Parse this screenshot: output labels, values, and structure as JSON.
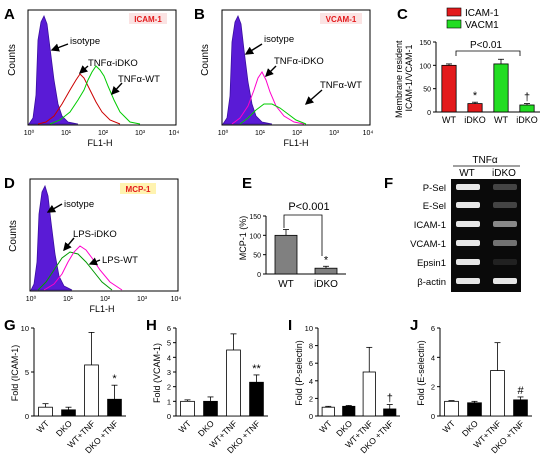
{
  "panels": {
    "A": {
      "letter": "A",
      "tag": "ICAM-1",
      "ylabel": "Counts",
      "xlabel": "FL1-H",
      "xticks": [
        "10⁰",
        "10¹",
        "10²",
        "10³",
        "10⁴"
      ],
      "labels": [
        "isotype",
        "TNFα-iDKO",
        "TNFα-WT"
      ]
    },
    "B": {
      "letter": "B",
      "tag": "VCAM-1",
      "ylabel": "Counts",
      "xlabel": "FL1-H",
      "xticks": [
        "10⁰",
        "10¹",
        "10²",
        "10³",
        "10⁴"
      ],
      "labels": [
        "isotype",
        "TNFα-iDKO",
        "TNFα-WT"
      ]
    },
    "C": {
      "letter": "C",
      "legend": [
        "ICAM-1",
        "VACM1"
      ],
      "ylabel": "Membrane resident\nICAM-1/VCAM-1",
      "stat": "P<0.01"
    },
    "D": {
      "letter": "D",
      "tag": "MCP-1",
      "ylabel": "Counts",
      "xlabel": "FL1-H",
      "xticks": [
        "10⁰",
        "10¹",
        "10²",
        "10³",
        "10⁴"
      ],
      "labels": [
        "isotype",
        "LPS-iDKO",
        "LPS-WT"
      ]
    },
    "E": {
      "letter": "E",
      "ylabel": "MCP-1 (%)",
      "stat": "P<0.001"
    },
    "F": {
      "letter": "F",
      "header": "TNFα",
      "lanes": [
        "WT",
        "iDKO"
      ],
      "rows": [
        "P-Sel",
        "E-Sel",
        "ICAM-1",
        "VCAM-1",
        "Epsin1",
        "β-actin"
      ]
    },
    "G": {
      "letter": "G",
      "ylabel": "Fold  (ICAM-1)"
    },
    "H": {
      "letter": "H",
      "ylabel": "Fold  (VCAM-1)"
    },
    "I": {
      "letter": "I",
      "ylabel": "Fold  (P-selectin)"
    },
    "J": {
      "letter": "J",
      "ylabel": "Fold  (E-selectin)"
    }
  },
  "colors": {
    "isotype": "#5a1bd6",
    "wt": "#00cc00",
    "idko": "#cc0000",
    "lps_idko": "#009900",
    "lps_wt": "#ff00cc",
    "icam": "#e31a1c",
    "vcam": "#22dd22"
  },
  "chart_data": [
    {
      "id": "C",
      "type": "bar",
      "categories": [
        "WT",
        "iDKO",
        "WT",
        "iDKO"
      ],
      "series": [
        {
          "name": "ICAM-1",
          "values": [
            100,
            18,
            null,
            null
          ],
          "errors": [
            3,
            3,
            null,
            null
          ]
        },
        {
          "name": "VACM1",
          "values": [
            null,
            null,
            103,
            15
          ],
          "errors": [
            null,
            null,
            10,
            3
          ]
        }
      ],
      "annotations": [
        "",
        "*",
        "",
        "†"
      ],
      "ylim": [
        0,
        150
      ],
      "yticks": [
        0,
        50,
        100,
        150
      ]
    },
    {
      "id": "E",
      "type": "bar",
      "categories": [
        "WT",
        "iDKO"
      ],
      "values": [
        100,
        15
      ],
      "errors": [
        15,
        5
      ],
      "annotations": [
        "",
        "*"
      ],
      "ylim": [
        0,
        150
      ],
      "yticks": [
        0,
        50,
        100,
        150
      ]
    },
    {
      "id": "G",
      "type": "bar",
      "categories": [
        "WT",
        "DKO",
        "WT+TNF",
        "DKO +TNF"
      ],
      "values": [
        1.0,
        0.7,
        5.8,
        1.9
      ],
      "errors": [
        0.4,
        0.3,
        3.7,
        1.6
      ],
      "annotations": [
        "",
        "",
        "",
        "*"
      ],
      "ylim": [
        0,
        10
      ],
      "yticks": [
        0,
        5,
        10
      ]
    },
    {
      "id": "H",
      "type": "bar",
      "categories": [
        "WT",
        "DKO",
        "WT+TNF",
        "DKO +TNF"
      ],
      "values": [
        1.0,
        1.0,
        4.5,
        2.3
      ],
      "errors": [
        0.1,
        0.3,
        1.1,
        0.5
      ],
      "annotations": [
        "",
        "",
        "",
        "**"
      ],
      "ylim": [
        0,
        6
      ],
      "yticks": [
        0,
        1,
        2,
        3,
        4,
        5,
        6
      ]
    },
    {
      "id": "I",
      "type": "bar",
      "categories": [
        "WT",
        "DKO",
        "WT+TNF",
        "DKO +TNF"
      ],
      "values": [
        1.0,
        1.1,
        5.0,
        0.8
      ],
      "errors": [
        0.1,
        0.1,
        2.8,
        0.5
      ],
      "annotations": [
        "",
        "",
        "",
        "†"
      ],
      "ylim": [
        0,
        10
      ],
      "yticks": [
        0,
        2,
        4,
        6,
        8,
        10
      ]
    },
    {
      "id": "J",
      "type": "bar",
      "categories": [
        "WT",
        "DKO",
        "WT+TNF",
        "DKO +TNF"
      ],
      "values": [
        1.0,
        0.9,
        3.1,
        1.1
      ],
      "errors": [
        0.05,
        0.1,
        1.9,
        0.2
      ],
      "annotations": [
        "",
        "",
        "",
        "#"
      ],
      "ylim": [
        0,
        6
      ],
      "yticks": [
        0,
        2,
        4,
        6
      ]
    }
  ]
}
